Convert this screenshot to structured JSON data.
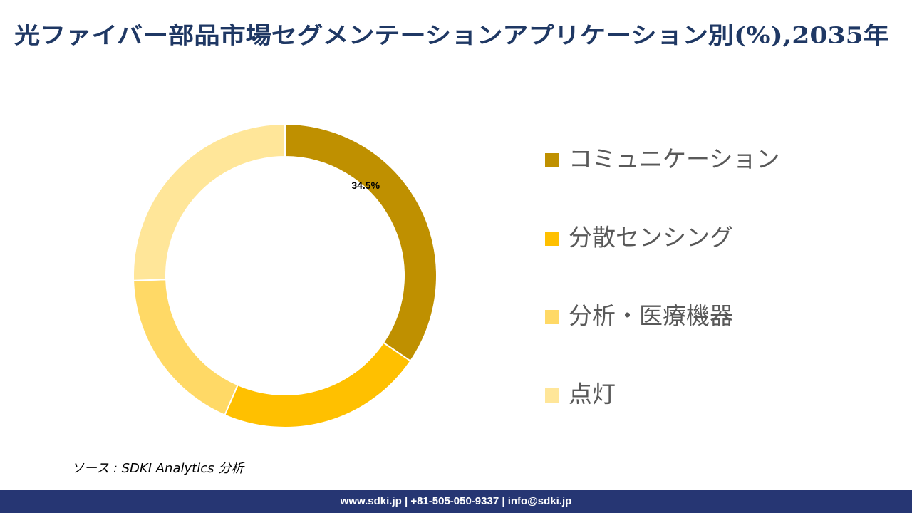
{
  "chart_data": {
    "type": "donut",
    "title": "光ファイバー部品市場セグメンテーションアプリケーション別(%),2035年",
    "categories": [
      "コミュニケーション",
      "分散センシング",
      "分析・医療機器",
      "点灯"
    ],
    "values": [
      34.5,
      22,
      18,
      25.5
    ],
    "value_labels": [
      "34.5%",
      null,
      null,
      null
    ],
    "colors": [
      "#BF9000",
      "#FFC000",
      "#FFD966",
      "#FFE699"
    ],
    "legend": "right"
  },
  "source": "ソース : SDKI Analytics 分析",
  "footer": "www.sdki.jp | +81-505-050-9337 | info@sdki.jp"
}
